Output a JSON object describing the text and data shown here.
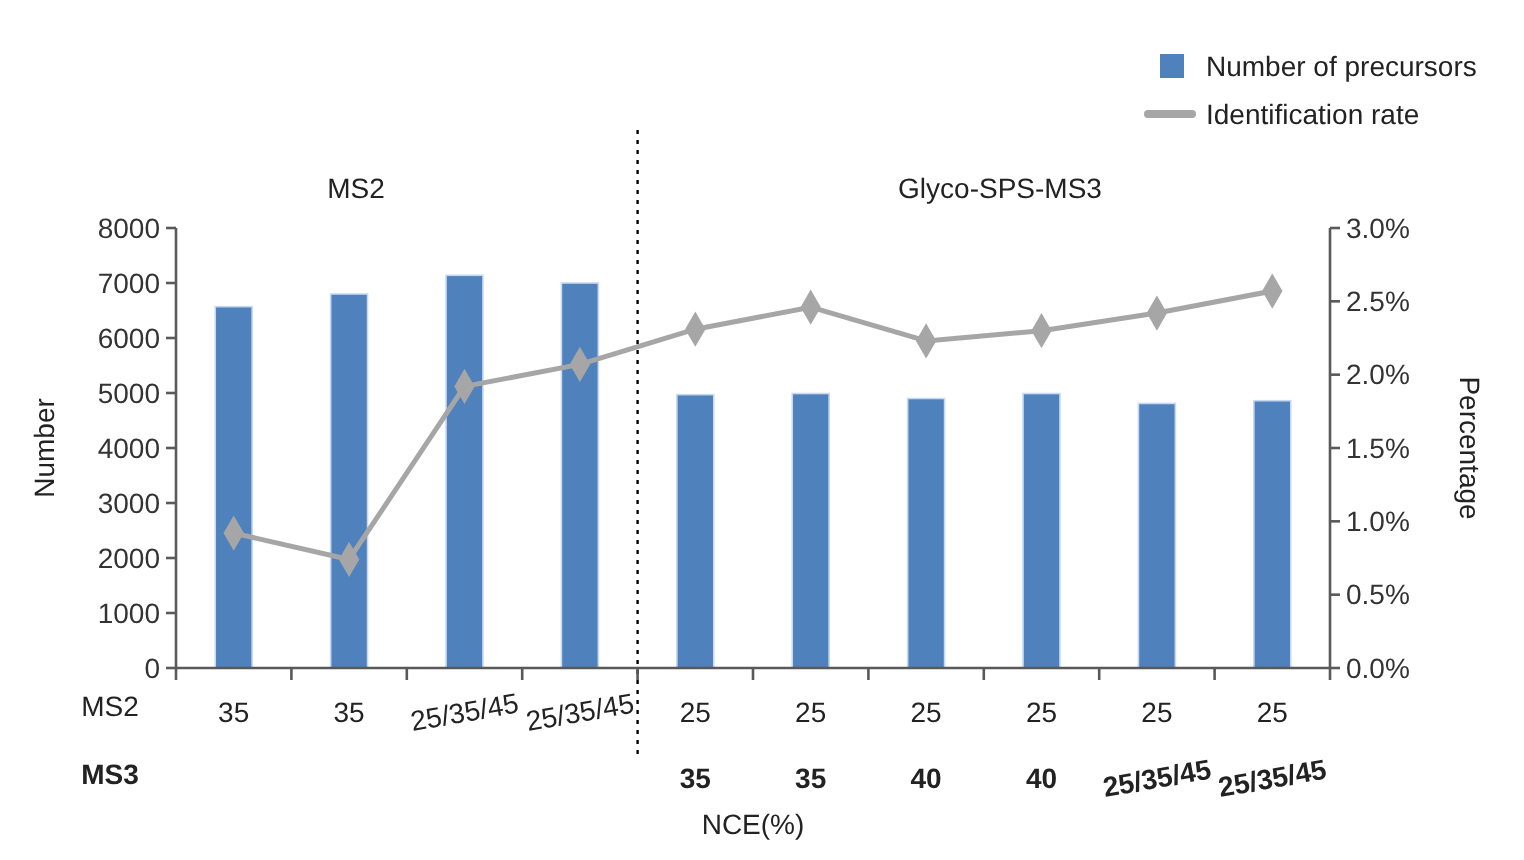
{
  "chart_data": {
    "type": "bar",
    "categories": [
      "35",
      "35",
      "25/35/45",
      "25/35/45",
      "25\n35",
      "25\n35",
      "25\n40",
      "25\n40",
      "25\n25/35/45",
      "25\n25/35/45"
    ],
    "series": [
      {
        "name": "Number of precursors",
        "color": "#4f81bd",
        "values": [
          6570,
          6800,
          7140,
          7000,
          4970,
          4990,
          4900,
          4990,
          4810,
          4860
        ]
      },
      {
        "name": "Identification rate",
        "type": "line",
        "axis": "y2",
        "color": "#a6a6a6",
        "marker": "diamond",
        "values": [
          0.92,
          0.74,
          1.92,
          2.07,
          2.31,
          2.46,
          2.23,
          2.3,
          2.42,
          2.57
        ]
      }
    ],
    "xlabel": "NCE(%)",
    "ylabel": "Number",
    "y2label": "Percentage",
    "ylim": [
      0,
      8000
    ],
    "yticks": [
      0,
      1000,
      2000,
      3000,
      4000,
      5000,
      6000,
      7000,
      8000
    ],
    "y2lim": [
      0,
      3
    ],
    "y2ticks": [
      {
        "value": 0,
        "label": "0.0%"
      },
      {
        "value": 0.5,
        "label": "0.5%"
      },
      {
        "value": 1,
        "label": "1.0%"
      },
      {
        "value": 1.5,
        "label": "1.5%"
      },
      {
        "value": 2,
        "label": "2.0%"
      },
      {
        "value": 2.5,
        "label": "2.5%"
      },
      {
        "value": 3,
        "label": "3.0%"
      }
    ],
    "annotations": [
      "MS2",
      "MS3",
      "MS2",
      "Glyco-SPS-MS3"
    ],
    "legend": "top right",
    "grid": false
  }
}
